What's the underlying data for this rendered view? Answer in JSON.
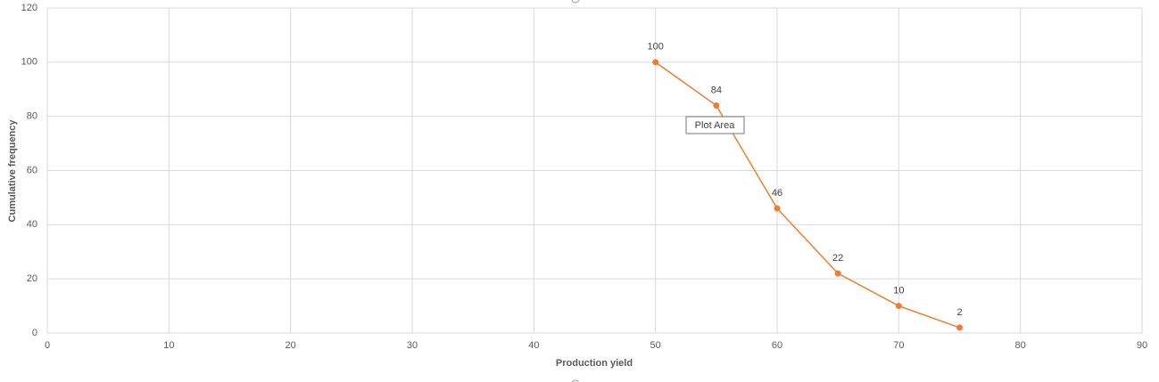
{
  "chart_data": {
    "type": "scatter_line",
    "x_label": "Production yield",
    "y_label": "Cumulative frequency",
    "x": [
      50,
      55,
      60,
      65,
      70,
      75
    ],
    "series": [
      {
        "color": "#ed7d31",
        "values": [
          100,
          84,
          46,
          22,
          10,
          2
        ]
      }
    ],
    "data_labels": true,
    "xlim": [
      0,
      90
    ],
    "xticks": [
      0,
      10,
      20,
      30,
      40,
      50,
      60,
      70,
      80,
      90
    ],
    "ylim": [
      0,
      120
    ],
    "yticks": [
      0,
      20,
      40,
      60,
      80,
      100,
      120
    ],
    "grid": true,
    "tooltip": "Plot Area"
  }
}
